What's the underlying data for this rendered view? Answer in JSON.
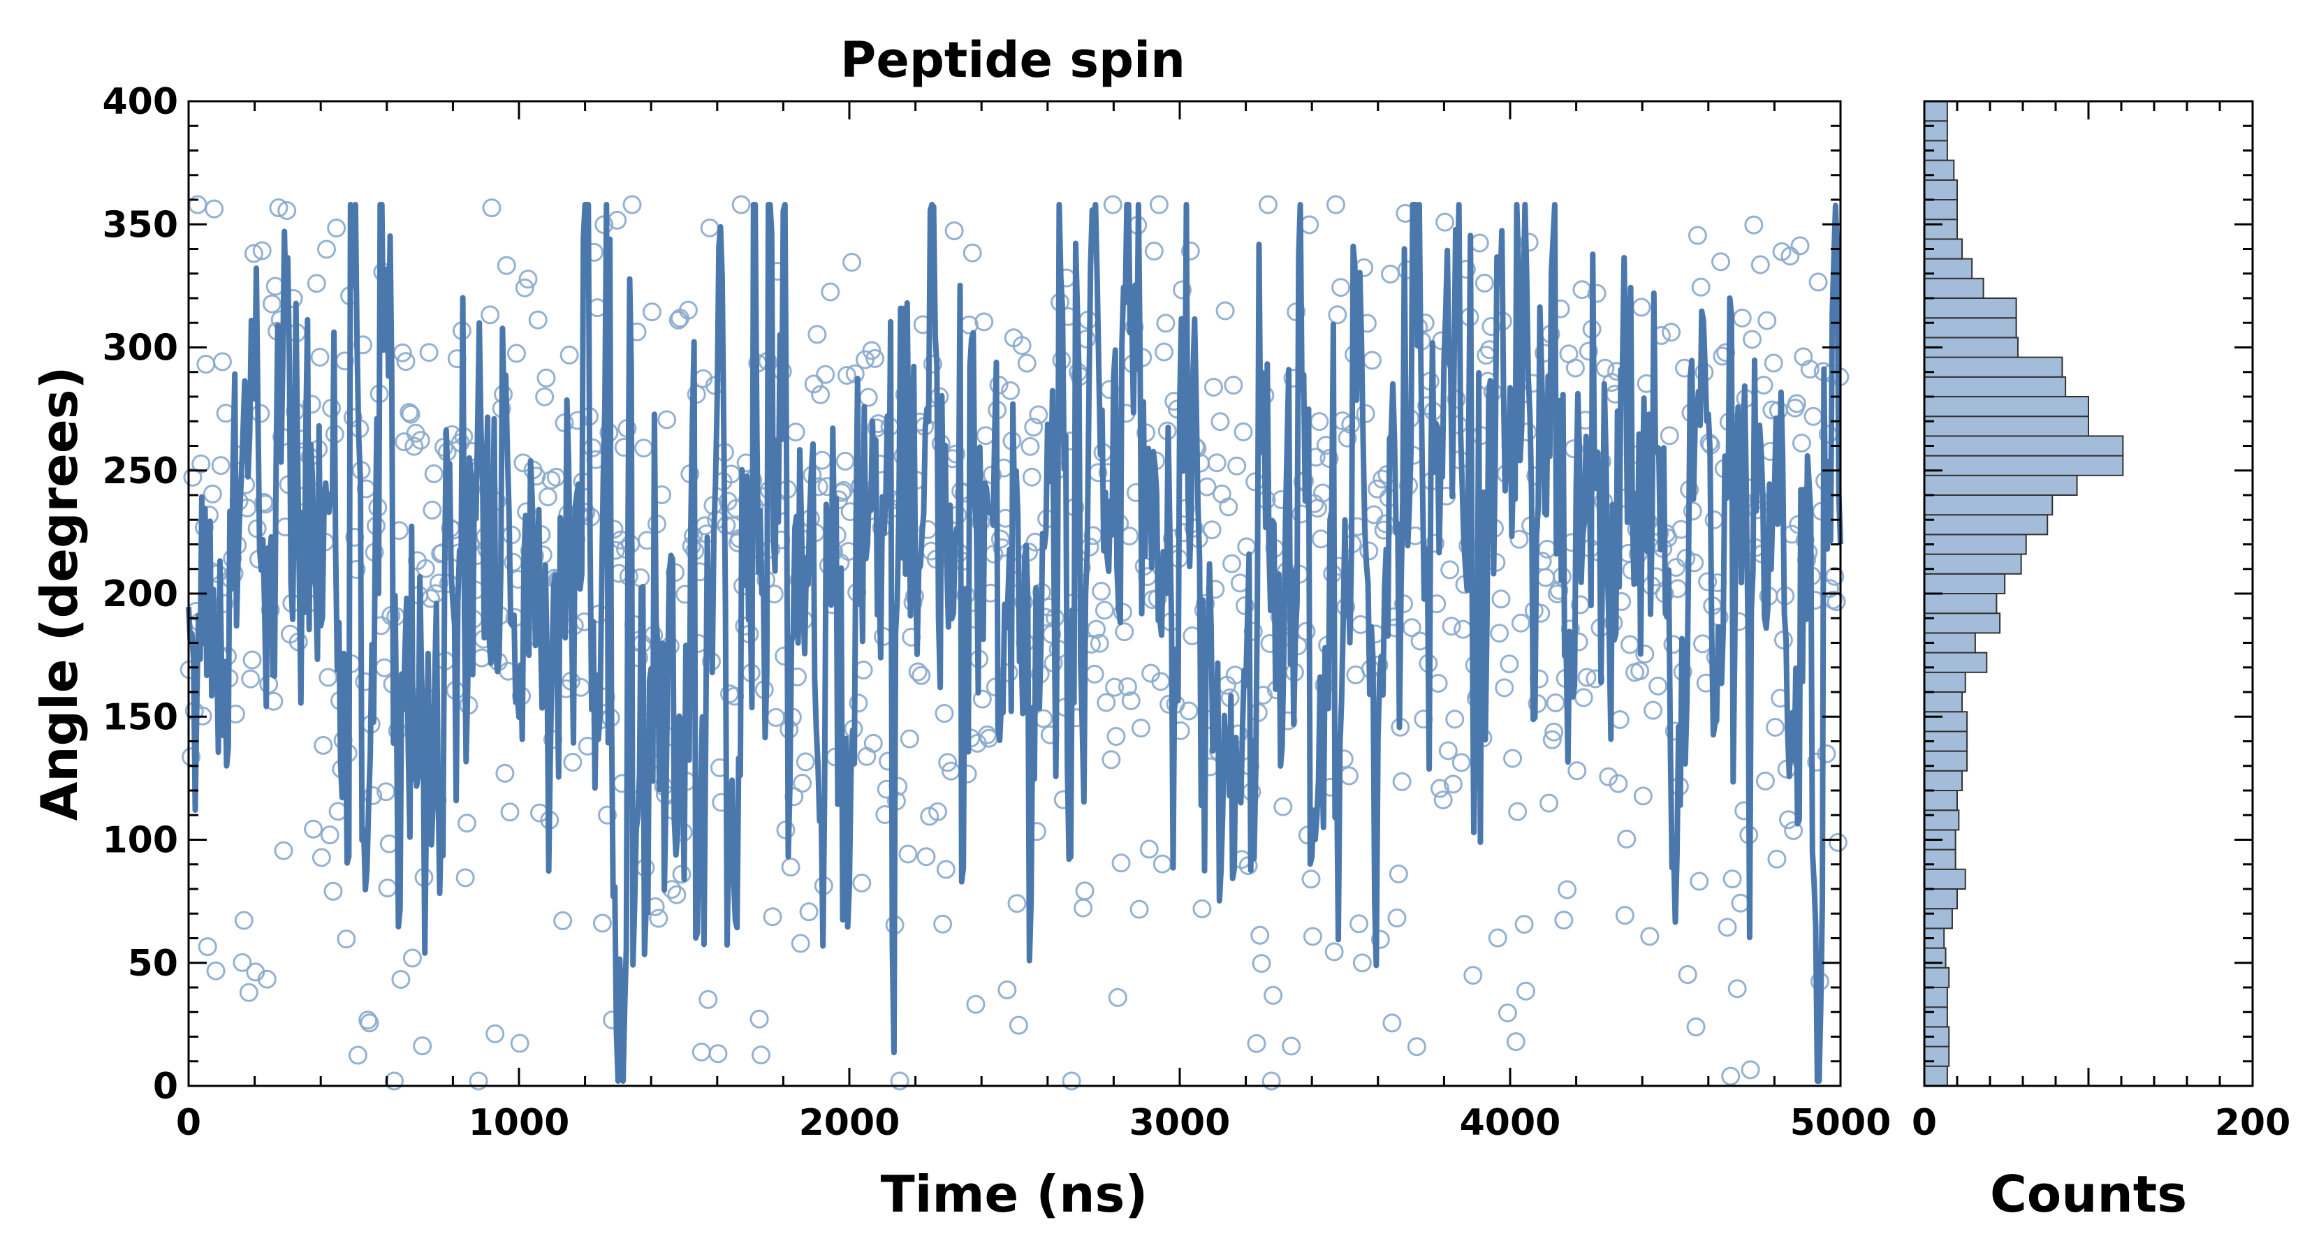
{
  "chart_data": [
    {
      "type": "line",
      "title": "Peptide spin",
      "xlabel": "Time (ns)",
      "ylabel": "Angle (degrees)",
      "xlim": [
        0,
        5000
      ],
      "ylim": [
        0,
        400
      ],
      "xticks": [
        "0",
        "1000",
        "2000",
        "3000",
        "4000",
        "5000"
      ],
      "yticks": [
        "0",
        "50",
        "100",
        "150",
        "200",
        "250",
        "300",
        "350",
        "400"
      ],
      "grid": false,
      "series": [
        {
          "style": "line",
          "color": "#4a78ad",
          "note_generated": "",
          "n_points": 1001,
          "x_start": 0,
          "x_step": 5,
          "mean": 215,
          "spread": 45
        },
        {
          "style": "open-circle-markers",
          "color": "#8aa8cc",
          "n_points": 1000,
          "x_start": 0,
          "x_step": 5
        }
      ]
    },
    {
      "type": "bar",
      "orientation": "horizontal",
      "xlabel": "Counts",
      "xlim": [
        0,
        200
      ],
      "xticks": [
        "0",
        "200"
      ],
      "ylim": [
        0,
        400
      ],
      "bin_width": 8,
      "bin_start": 0,
      "color": "#a3bcd9",
      "edgecolor": "#333333",
      "values": [
        14,
        15,
        15,
        14,
        14,
        15,
        13,
        12,
        17,
        20,
        25,
        19,
        19,
        21,
        20,
        23,
        26,
        26,
        26,
        23,
        25,
        38,
        31,
        46,
        44,
        49,
        59,
        62,
        75,
        78,
        93,
        121,
        121,
        100,
        100,
        86,
        84,
        57,
        56,
        56,
        36,
        29,
        23,
        20,
        20,
        20,
        18,
        14,
        14,
        14
      ]
    }
  ]
}
